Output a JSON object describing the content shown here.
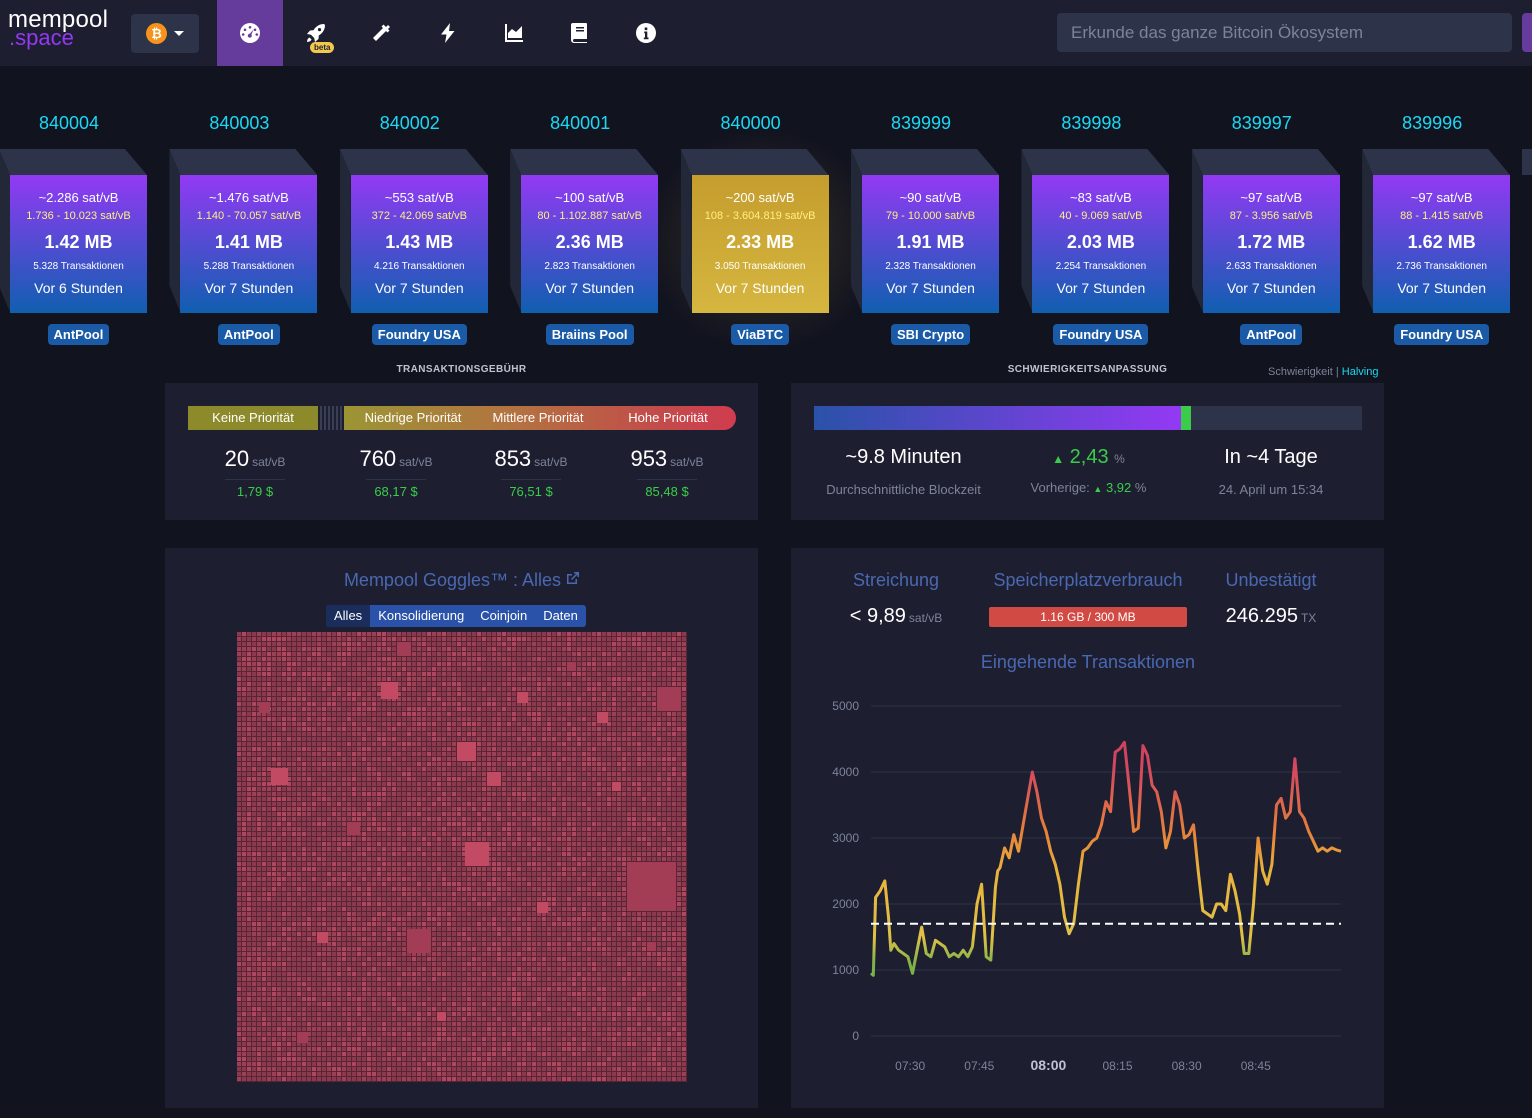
{
  "nav": {
    "logo_line1": "mempool",
    "logo_line2": ".space",
    "network_icon": "bitcoin-icon",
    "beta_label": "beta",
    "items": [
      {
        "name": "dashboard",
        "icon": "gauge-icon"
      },
      {
        "name": "accelerator",
        "icon": "rocket-icon"
      },
      {
        "name": "mining",
        "icon": "hammer-icon"
      },
      {
        "name": "lightning",
        "icon": "bolt-icon"
      },
      {
        "name": "graphs",
        "icon": "area-chart-icon"
      },
      {
        "name": "docs",
        "icon": "book-icon"
      },
      {
        "name": "about",
        "icon": "info-icon"
      }
    ],
    "search_placeholder": "Erkunde das ganze Bitcoin Ökosystem"
  },
  "blocks": [
    {
      "height": "840004",
      "fee": "~2.286 sat/vB",
      "range": "1.736 - 10.023 sat/vB",
      "size": "1.42 MB",
      "txs": "5.328 Transaktionen",
      "time": "Vor 6 Stunden",
      "pool": "AntPool",
      "mined": false
    },
    {
      "height": "840003",
      "fee": "~1.476 sat/vB",
      "range": "1.140 - 70.057 sat/vB",
      "size": "1.41 MB",
      "txs": "5.288 Transaktionen",
      "time": "Vor 7 Stunden",
      "pool": "AntPool",
      "mined": false
    },
    {
      "height": "840002",
      "fee": "~553 sat/vB",
      "range": "372 - 42.069 sat/vB",
      "size": "1.43 MB",
      "txs": "4.216 Transaktionen",
      "time": "Vor 7 Stunden",
      "pool": "Foundry USA",
      "mined": false
    },
    {
      "height": "840001",
      "fee": "~100 sat/vB",
      "range": "80 - 1.102.887 sat/vB",
      "size": "2.36 MB",
      "txs": "2.823 Transaktionen",
      "time": "Vor 7 Stunden",
      "pool": "Braiins Pool",
      "mined": false
    },
    {
      "height": "840000",
      "fee": "~200 sat/vB",
      "range": "108 - 3.604.819 sat/vB",
      "size": "2.33 MB",
      "txs": "3.050 Transaktionen",
      "time": "Vor 7 Stunden",
      "pool": "ViaBTC",
      "mined": true
    },
    {
      "height": "839999",
      "fee": "~90 sat/vB",
      "range": "79 - 10.000 sat/vB",
      "size": "1.91 MB",
      "txs": "2.328 Transaktionen",
      "time": "Vor 7 Stunden",
      "pool": "SBI Crypto",
      "mined": false
    },
    {
      "height": "839998",
      "fee": "~83 sat/vB",
      "range": "40 - 9.069 sat/vB",
      "size": "2.03 MB",
      "txs": "2.254 Transaktionen",
      "time": "Vor 7 Stunden",
      "pool": "Foundry USA",
      "mined": false
    },
    {
      "height": "839997",
      "fee": "~97 sat/vB",
      "range": "87 - 3.956 sat/vB",
      "size": "1.72 MB",
      "txs": "2.633 Transaktionen",
      "time": "Vor 7 Stunden",
      "pool": "AntPool",
      "mined": false
    },
    {
      "height": "839996",
      "fee": "~97 sat/vB",
      "range": "88 - 1.415 sat/vB",
      "size": "1.62 MB",
      "txs": "2.736 Transaktionen",
      "time": "Vor 7 Stunden",
      "pool": "Foundry USA",
      "mined": false
    }
  ],
  "fees": {
    "title": "TRANSAKTIONSGEBÜHR",
    "labels": [
      "Keine Priorität",
      "Niedrige Priorität",
      "Mittlere Priorität",
      "Hohe Priorität"
    ],
    "unit": "sat/vB",
    "values": [
      {
        "rate": "20",
        "usd": "1,79 $"
      },
      {
        "rate": "760",
        "usd": "68,17 $"
      },
      {
        "rate": "853",
        "usd": "76,51 $"
      },
      {
        "rate": "953",
        "usd": "85,48 $"
      }
    ]
  },
  "difficulty": {
    "title": "SCHWIERIGKEITSANPASSUNG",
    "link_difficulty": "Schwierigkeit",
    "separator": "|",
    "link_halving": "Halving",
    "progress_fraction": 0.67,
    "avg_block_time": "~9.8 Minuten",
    "avg_block_time_label": "Durchschnittliche Blockzeit",
    "change": "2,43",
    "change_unit": "%",
    "previous_label": "Vorherige:",
    "previous": "3,92",
    "previous_unit": "%",
    "eta": "In ~4 Tage",
    "eta_date": "24. April um 15:34"
  },
  "goggles": {
    "title": "Mempool Goggles™ : Alles",
    "filters": [
      "Alles",
      "Konsolidierung",
      "Coinjoin",
      "Daten"
    ],
    "active_filter": "Alles"
  },
  "mempool_stats": {
    "purging_label": "Streichung",
    "purging_prefix": "<",
    "purging_value": "9,89",
    "purging_unit": "sat/vB",
    "memory_label": "Speicherplatzverbrauch",
    "memory_value": "1.16 GB / 300 MB",
    "unconfirmed_label": "Unbestätigt",
    "unconfirmed_value": "246.295",
    "unconfirmed_unit": "TX",
    "incoming_title": "Eingehende Transaktionen"
  },
  "chart_data": {
    "type": "line",
    "title": "Eingehende Transaktionen",
    "x_ticks": [
      "07:30",
      "07:45",
      "08:00",
      "08:15",
      "08:30",
      "08:45"
    ],
    "x_tick_bold": "08:00",
    "y_ticks": [
      0,
      1000,
      2000,
      3000,
      4000,
      5000
    ],
    "ylim": [
      0,
      5000
    ],
    "xlim_minutes": [
      0,
      102
    ],
    "reference_line": 1700,
    "series": [
      {
        "x": [
          0,
          0.5,
          1,
          2,
          3,
          3.8,
          4.3,
          5,
          6,
          7,
          8,
          9,
          10,
          11,
          12,
          13,
          14,
          15,
          16,
          17,
          18,
          19,
          20,
          21,
          22,
          23,
          24,
          25,
          26,
          27,
          27.5,
          28,
          29,
          30,
          31,
          32,
          33,
          34,
          35,
          36,
          37,
          38,
          39,
          40,
          41,
          42,
          43,
          44,
          45,
          46,
          47,
          48,
          49,
          50,
          51,
          52,
          53,
          54,
          55,
          56,
          57,
          58,
          59,
          60,
          61,
          62,
          63,
          64,
          65,
          66,
          67,
          68,
          69,
          70,
          71,
          72,
          73,
          74,
          75,
          76,
          77,
          78,
          79,
          80,
          81,
          82,
          83,
          84,
          85,
          86,
          87,
          88,
          89,
          90,
          91,
          92,
          93,
          94,
          95,
          96,
          97,
          98,
          99,
          100,
          101,
          102
        ],
        "values": [
          950,
          920,
          2100,
          2200,
          2350,
          1800,
          1300,
          1400,
          1300,
          1250,
          1200,
          950,
          1300,
          1650,
          1250,
          1200,
          1450,
          1400,
          1350,
          1200,
          1250,
          1200,
          1300,
          1200,
          1350,
          2000,
          2300,
          1200,
          1150,
          2250,
          2500,
          2550,
          2850,
          2700,
          3050,
          2800,
          3200,
          3600,
          4000,
          3700,
          3300,
          3100,
          2800,
          2600,
          2300,
          1800,
          1550,
          1700,
          2300,
          2800,
          2850,
          2950,
          3000,
          3200,
          3550,
          3400,
          4300,
          4350,
          4450,
          3800,
          3100,
          3150,
          4400,
          4250,
          3800,
          3700,
          3400,
          2850,
          3100,
          3700,
          3500,
          3000,
          3050,
          3200,
          2500,
          1900,
          1850,
          1800,
          2000,
          2000,
          1900,
          2450,
          2200,
          1850,
          1250,
          1250,
          2000,
          3000,
          2500,
          2300,
          2600,
          3500,
          3600,
          3300,
          3400,
          4200,
          3400,
          3300,
          3100,
          2950,
          2800,
          2850,
          2800,
          2850,
          2820,
          2800
        ]
      }
    ],
    "grid": true,
    "legend": "none"
  },
  "colors": {
    "accent": "#9339f4",
    "nav_active": "#653b9c",
    "block_height": "#1bd8f4",
    "mined_block": "#c59d2e",
    "pool_badge": "#1a5aa6",
    "positive": "#3bcc49",
    "memory_bar": "#d14a43",
    "card_bg": "#1d1f31",
    "page_bg": "#11131f"
  }
}
